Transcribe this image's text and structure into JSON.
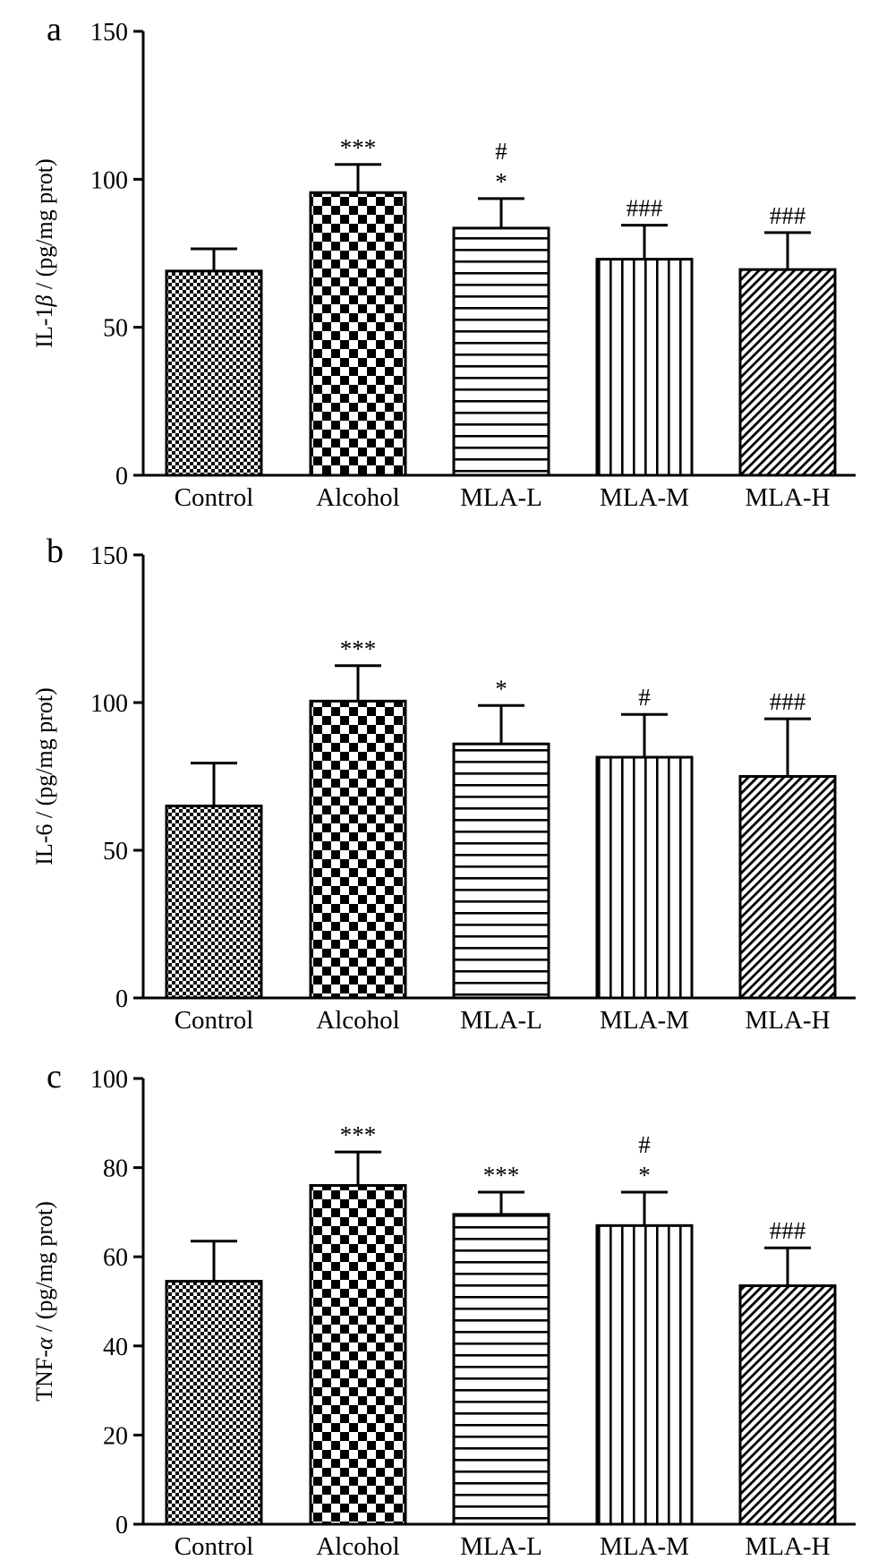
{
  "chart_data": [
    {
      "type": "bar",
      "panel_label": "a",
      "categories": [
        "Control",
        "Alcohol",
        "MLA-L",
        "MLA-M",
        "MLA-H"
      ],
      "values": [
        69,
        95.5,
        83.5,
        73,
        69.5
      ],
      "errors": [
        7.5,
        9.5,
        10,
        11.5,
        12.5
      ],
      "annotations": [
        [],
        [
          "***"
        ],
        [
          "*",
          "#"
        ],
        [
          "###"
        ],
        [
          "###"
        ]
      ],
      "ylabel_pre": "IL-1",
      "ylabel_greek": "β",
      "ylabel_post": " / (pg/mg prot)",
      "ylim": [
        0,
        150
      ],
      "yticks": [
        0,
        50,
        100,
        150
      ],
      "grid": false,
      "legend": "none"
    },
    {
      "type": "bar",
      "panel_label": "b",
      "categories": [
        "Control",
        "Alcohol",
        "MLA-L",
        "MLA-M",
        "MLA-H"
      ],
      "values": [
        65,
        100.5,
        86,
        81.5,
        75
      ],
      "errors": [
        14.5,
        12,
        13,
        14.5,
        19.5
      ],
      "annotations": [
        [],
        [
          "***"
        ],
        [
          "*"
        ],
        [
          "#"
        ],
        [
          "###"
        ]
      ],
      "ylabel_pre": "IL-6",
      "ylabel_greek": "",
      "ylabel_post": " / (pg/mg prot)",
      "ylim": [
        0,
        150
      ],
      "yticks": [
        0,
        50,
        100,
        150
      ],
      "grid": false,
      "legend": "none"
    },
    {
      "type": "bar",
      "panel_label": "c",
      "categories": [
        "Control",
        "Alcohol",
        "MLA-L",
        "MLA-M",
        "MLA-H"
      ],
      "values": [
        54.5,
        76,
        69.5,
        67,
        53.5
      ],
      "errors": [
        9,
        7.5,
        5,
        7.5,
        8.5
      ],
      "annotations": [
        [],
        [
          "***"
        ],
        [
          "***"
        ],
        [
          "*",
          "#"
        ],
        [
          "###"
        ]
      ],
      "ylabel_pre": "TNF-",
      "ylabel_greek": "α",
      "ylabel_post": " / (pg/mg prot)",
      "ylim": [
        0,
        100
      ],
      "yticks": [
        0,
        20,
        40,
        60,
        80,
        100
      ],
      "grid": false,
      "legend": "none"
    }
  ]
}
